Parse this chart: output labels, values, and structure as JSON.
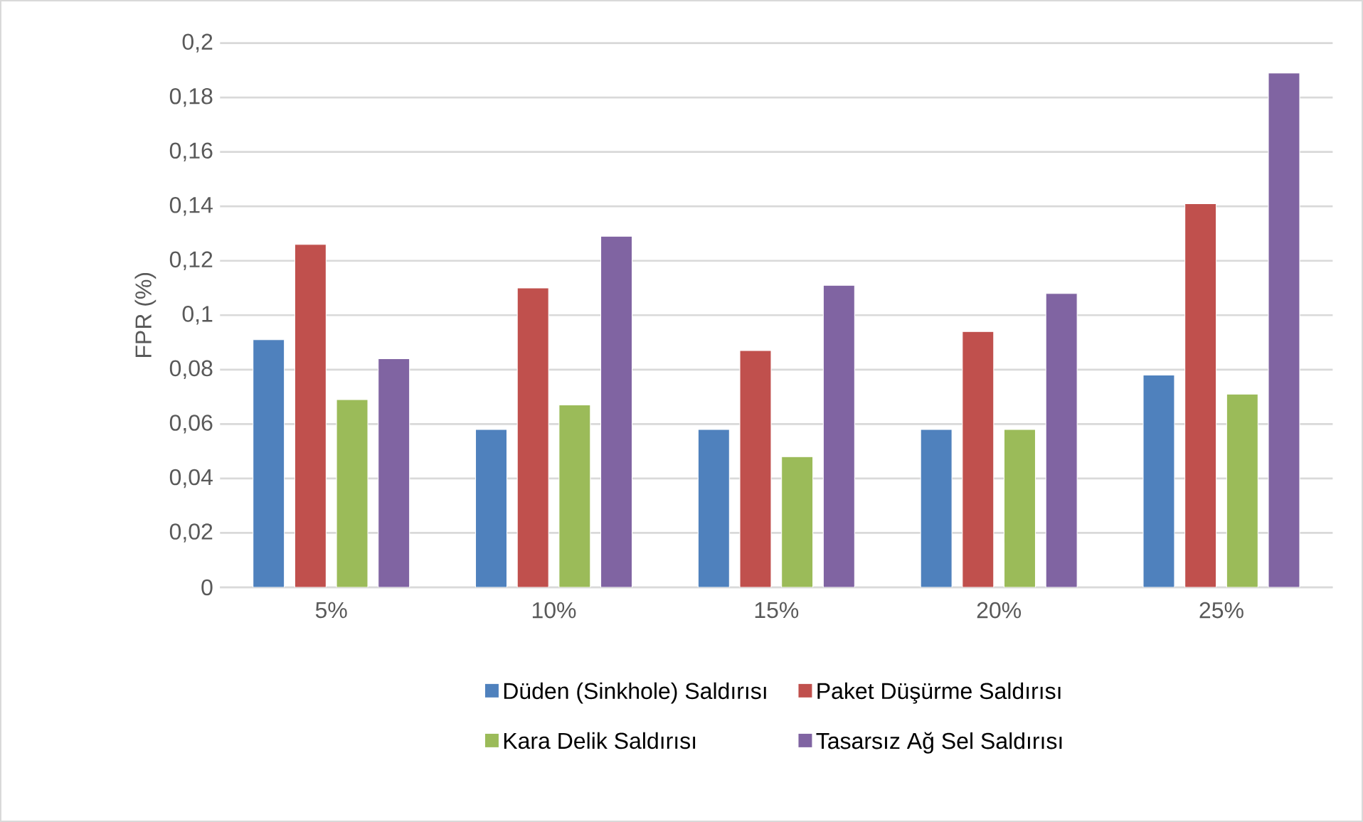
{
  "chart_data": {
    "type": "bar",
    "ylabel": "FPR (%)",
    "categories": [
      "5%",
      "10%",
      "15%",
      "20%",
      "25%"
    ],
    "series": [
      {
        "name": "Düden (Sinkhole) Saldırısı",
        "color": "#4f81bd",
        "values": [
          0.091,
          0.058,
          0.058,
          0.058,
          0.078
        ]
      },
      {
        "name": "Paket Düşürme Saldırısı",
        "color": "#c0504d",
        "values": [
          0.126,
          0.11,
          0.087,
          0.094,
          0.141
        ]
      },
      {
        "name": "Kara Delik Saldırısı",
        "color": "#9bbb59",
        "values": [
          0.069,
          0.067,
          0.048,
          0.058,
          0.071
        ]
      },
      {
        "name": "Tasarsız Ağ Sel Saldırısı",
        "color": "#8064a2",
        "values": [
          0.084,
          0.129,
          0.111,
          0.108,
          0.189
        ]
      }
    ],
    "ylim": [
      0,
      0.2
    ],
    "yticks": [
      0,
      {
        "value": 0.02,
        "label": "0,02"
      },
      {
        "value": 0.04,
        "label": "0,04"
      },
      {
        "value": 0.06,
        "label": "0,06"
      },
      {
        "value": 0.08,
        "label": "0,08"
      },
      {
        "value": 0.1,
        "label": "0,1"
      },
      {
        "value": 0.12,
        "label": "0,12"
      },
      {
        "value": 0.14,
        "label": "0,14"
      },
      {
        "value": 0.16,
        "label": "0,16"
      },
      {
        "value": 0.18,
        "label": "0,18"
      },
      {
        "value": 0.2,
        "label": "0,2"
      }
    ],
    "grid": "y",
    "legend": "bottom"
  }
}
